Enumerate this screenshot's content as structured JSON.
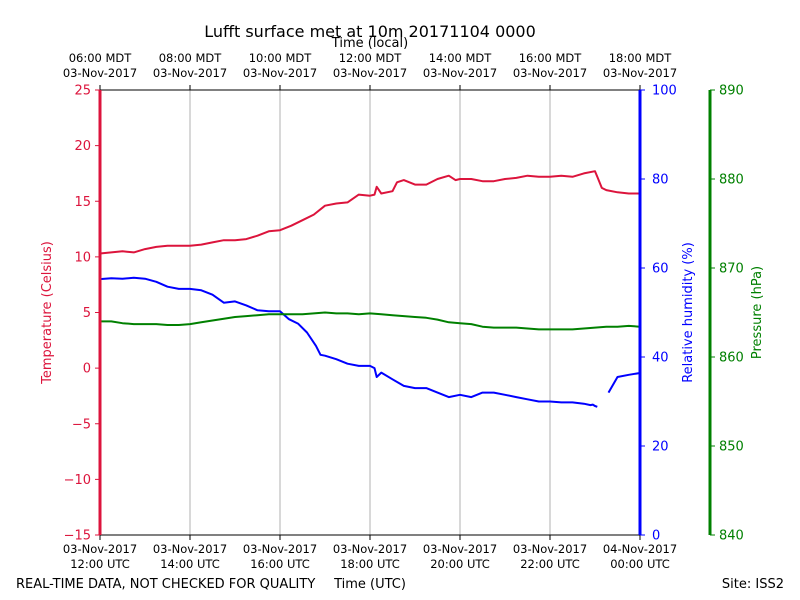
{
  "title": "Lufft surface met at 10m 20171104 0000",
  "footer_left": "REAL-TIME DATA, NOT CHECKED FOR QUALITY",
  "footer_right": "Site: ISS2",
  "colors": {
    "temperature": "#dc143c",
    "humidity": "#0000ff",
    "pressure": "#008000",
    "grid": "#b0b0b0",
    "text": "#000000"
  },
  "chart_data": {
    "type": "line",
    "title": "Lufft surface met at 10m 20171104 0000",
    "xlabel": "Time (UTC)",
    "xlabel_top": "Time (local)",
    "x_unit": "hours UTC, 03-Nov-2017",
    "xlim": [
      12,
      24
    ],
    "grid": "vertical at each x tick",
    "bottom_ticks": [
      {
        "x": 12,
        "line1": "03-Nov-2017",
        "line2": "12:00 UTC"
      },
      {
        "x": 14,
        "line1": "03-Nov-2017",
        "line2": "14:00 UTC"
      },
      {
        "x": 16,
        "line1": "03-Nov-2017",
        "line2": "16:00 UTC"
      },
      {
        "x": 18,
        "line1": "03-Nov-2017",
        "line2": "18:00 UTC"
      },
      {
        "x": 20,
        "line1": "03-Nov-2017",
        "line2": "20:00 UTC"
      },
      {
        "x": 22,
        "line1": "03-Nov-2017",
        "line2": "22:00 UTC"
      },
      {
        "x": 24,
        "line1": "04-Nov-2017",
        "line2": "00:00 UTC"
      }
    ],
    "top_ticks": [
      {
        "x": 12,
        "line1": "06:00 MDT",
        "line2": "03-Nov-2017"
      },
      {
        "x": 14,
        "line1": "08:00 MDT",
        "line2": "03-Nov-2017"
      },
      {
        "x": 16,
        "line1": "10:00 MDT",
        "line2": "03-Nov-2017"
      },
      {
        "x": 18,
        "line1": "12:00 MDT",
        "line2": "03-Nov-2017"
      },
      {
        "x": 20,
        "line1": "14:00 MDT",
        "line2": "03-Nov-2017"
      },
      {
        "x": 22,
        "line1": "16:00 MDT",
        "line2": "03-Nov-2017"
      },
      {
        "x": 24,
        "line1": "18:00 MDT",
        "line2": "03-Nov-2017"
      }
    ],
    "axes": [
      {
        "id": "temperature",
        "label": "Temperature (Celsius)",
        "ylim": [
          -15,
          25
        ],
        "ticks": [
          25,
          20,
          15,
          10,
          5,
          0,
          -5,
          -10,
          -15
        ]
      },
      {
        "id": "humidity",
        "label": "Relative humidity (%)",
        "ylim": [
          0,
          100
        ],
        "ticks": [
          0,
          20,
          40,
          60,
          80,
          100
        ]
      },
      {
        "id": "pressure",
        "label": "Pressure (hPa)",
        "ylim": [
          840,
          890
        ],
        "ticks": [
          840,
          850,
          860,
          870,
          880,
          890
        ]
      }
    ],
    "series": [
      {
        "id": "temperature",
        "axis": "temperature",
        "x": [
          12.0,
          12.25,
          12.5,
          12.75,
          13.0,
          13.25,
          13.5,
          13.75,
          14.0,
          14.25,
          14.5,
          14.75,
          15.0,
          15.25,
          15.5,
          15.75,
          16.0,
          16.25,
          16.5,
          16.75,
          17.0,
          17.25,
          17.5,
          17.75,
          18.0,
          18.1,
          18.15,
          18.25,
          18.5,
          18.6,
          18.75,
          19.0,
          19.25,
          19.5,
          19.75,
          19.9,
          20.0,
          20.25,
          20.5,
          20.75,
          21.0,
          21.25,
          21.5,
          21.75,
          22.0,
          22.25,
          22.5,
          22.75,
          23.0,
          23.05,
          23.15,
          23.25,
          23.5,
          23.75,
          24.0
        ],
        "y": [
          10.3,
          10.4,
          10.5,
          10.4,
          10.7,
          10.9,
          11.0,
          11.0,
          11.0,
          11.1,
          11.3,
          11.5,
          11.5,
          11.6,
          11.9,
          12.3,
          12.4,
          12.8,
          13.3,
          13.8,
          14.6,
          14.8,
          14.9,
          15.6,
          15.5,
          15.6,
          16.3,
          15.7,
          15.9,
          16.7,
          16.9,
          16.5,
          16.5,
          17.0,
          17.3,
          16.9,
          17.0,
          17.0,
          16.8,
          16.8,
          17.0,
          17.1,
          17.3,
          17.2,
          17.2,
          17.3,
          17.2,
          17.5,
          17.7,
          17.2,
          16.2,
          16.0,
          15.8,
          15.7,
          15.7
        ]
      },
      {
        "id": "humidity",
        "axis": "humidity",
        "x": [
          12.0,
          12.25,
          12.5,
          12.75,
          13.0,
          13.25,
          13.5,
          13.75,
          14.0,
          14.25,
          14.5,
          14.75,
          15.0,
          15.25,
          15.5,
          15.75,
          16.0,
          16.2,
          16.4,
          16.6,
          16.8,
          16.9,
          17.0,
          17.25,
          17.5,
          17.75,
          18.0,
          18.1,
          18.15,
          18.25,
          18.5,
          18.75,
          19.0,
          19.25,
          19.5,
          19.75,
          20.0,
          20.25,
          20.5,
          20.75,
          21.0,
          21.25,
          21.5,
          21.75,
          22.0,
          22.25,
          22.5,
          22.75,
          22.9,
          22.95,
          23.0,
          23.05,
          23.15,
          23.3,
          23.5,
          23.75,
          24.0
        ],
        "y": [
          57.5,
          57.7,
          57.6,
          57.8,
          57.6,
          56.9,
          55.8,
          55.3,
          55.3,
          55.0,
          54.0,
          52.2,
          52.5,
          51.6,
          50.5,
          50.3,
          50.3,
          48.5,
          47.5,
          45.5,
          42.5,
          40.5,
          40.3,
          39.5,
          38.5,
          38.0,
          38.0,
          37.5,
          35.5,
          36.5,
          35.0,
          33.5,
          33.0,
          33.0,
          32.0,
          31.0,
          31.5,
          31.0,
          32.0,
          32.0,
          31.5,
          31.0,
          30.5,
          30.0,
          30.0,
          29.8,
          29.8,
          29.5,
          29.2,
          29.3,
          29.0,
          28.8,
          null,
          32.0,
          35.5,
          36.0,
          36.4
        ]
      },
      {
        "id": "pressure",
        "axis": "pressure",
        "x": [
          12.0,
          12.25,
          12.5,
          12.75,
          13.0,
          13.25,
          13.5,
          13.75,
          14.0,
          14.25,
          14.5,
          14.75,
          15.0,
          15.25,
          15.5,
          15.75,
          16.0,
          16.25,
          16.5,
          16.75,
          17.0,
          17.25,
          17.5,
          17.75,
          18.0,
          18.25,
          18.5,
          18.75,
          19.0,
          19.25,
          19.5,
          19.75,
          20.0,
          20.25,
          20.5,
          20.75,
          21.0,
          21.25,
          21.5,
          21.75,
          22.0,
          22.25,
          22.5,
          22.75,
          23.0,
          23.25,
          23.5,
          23.75,
          24.0
        ],
        "y": [
          864.0,
          864.0,
          863.8,
          863.7,
          863.7,
          863.7,
          863.6,
          863.6,
          863.7,
          863.9,
          864.1,
          864.3,
          864.5,
          864.6,
          864.7,
          864.8,
          864.8,
          864.8,
          864.8,
          864.9,
          865.0,
          864.9,
          864.9,
          864.8,
          864.9,
          864.8,
          864.7,
          864.6,
          864.5,
          864.4,
          864.2,
          863.9,
          863.8,
          863.7,
          863.4,
          863.3,
          863.3,
          863.3,
          863.2,
          863.1,
          863.1,
          863.1,
          863.1,
          863.2,
          863.3,
          863.4,
          863.4,
          863.5,
          863.4
        ]
      }
    ]
  }
}
